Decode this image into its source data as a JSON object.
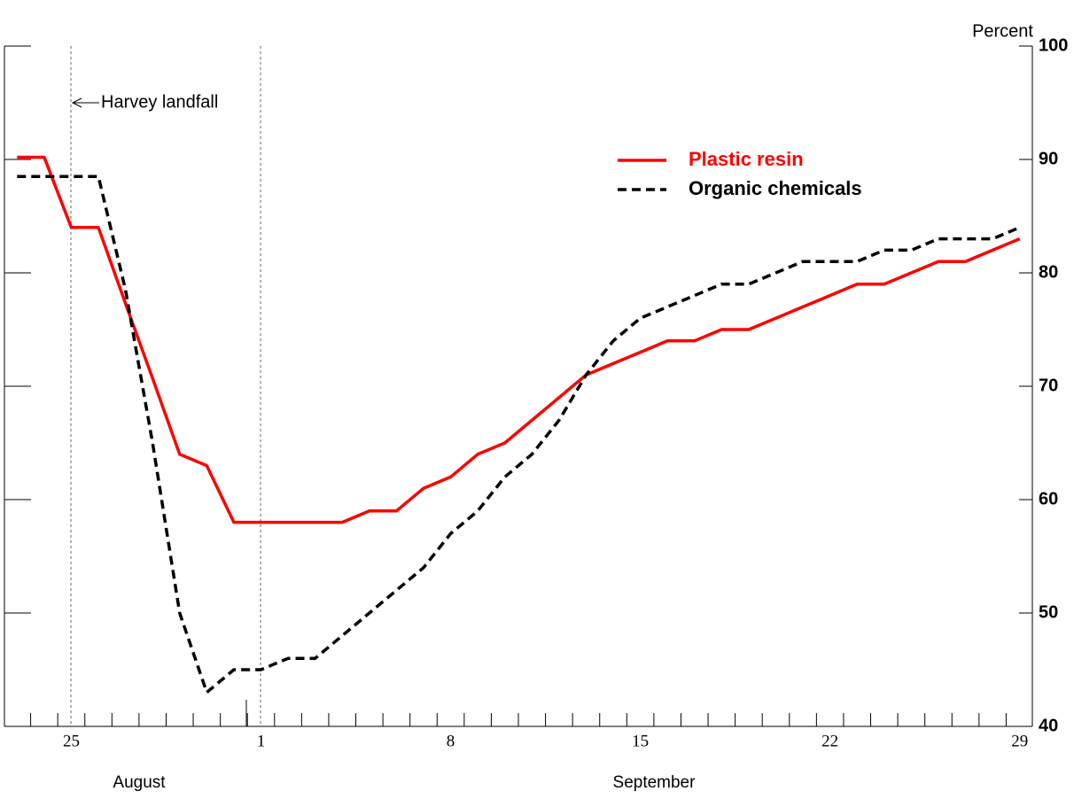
{
  "chart_data": {
    "type": "line",
    "y_axis_label": "Percent",
    "annotation": "Harvey landfall",
    "months": [
      "August",
      "September"
    ],
    "categories": [
      null,
      null,
      "25",
      null,
      null,
      null,
      null,
      null,
      null,
      "1",
      null,
      null,
      null,
      null,
      null,
      null,
      "8",
      null,
      null,
      null,
      null,
      null,
      null,
      "15",
      null,
      null,
      null,
      null,
      null,
      null,
      "22",
      null,
      null,
      null,
      null,
      null,
      null,
      "29"
    ],
    "series": [
      {
        "name": "Plastic resin",
        "color": "#ff0000",
        "dash": false,
        "values": [
          90.2,
          90.2,
          84,
          84,
          77.3,
          70.7,
          64,
          63,
          58,
          58,
          58,
          58,
          58,
          59,
          59,
          61,
          62,
          64,
          65,
          67,
          69,
          71,
          72,
          73,
          74,
          74,
          75,
          75,
          76,
          77,
          78,
          79,
          79,
          80,
          81,
          81,
          82,
          83
        ]
      },
      {
        "name": "Organic chemicals",
        "color": "#000000",
        "dash": true,
        "values": [
          88.5,
          88.5,
          88.5,
          88.5,
          78.5,
          65,
          50,
          43,
          45,
          45,
          46,
          46,
          48,
          50,
          52,
          54,
          57,
          59,
          62,
          64,
          67,
          71,
          74,
          76,
          77,
          78,
          79,
          79,
          80,
          81,
          81,
          81,
          82,
          82,
          83,
          83,
          83,
          84
        ]
      }
    ],
    "ylim": [
      40,
      100
    ],
    "yticks": [
      40,
      50,
      60,
      70,
      80,
      90,
      100
    ]
  }
}
